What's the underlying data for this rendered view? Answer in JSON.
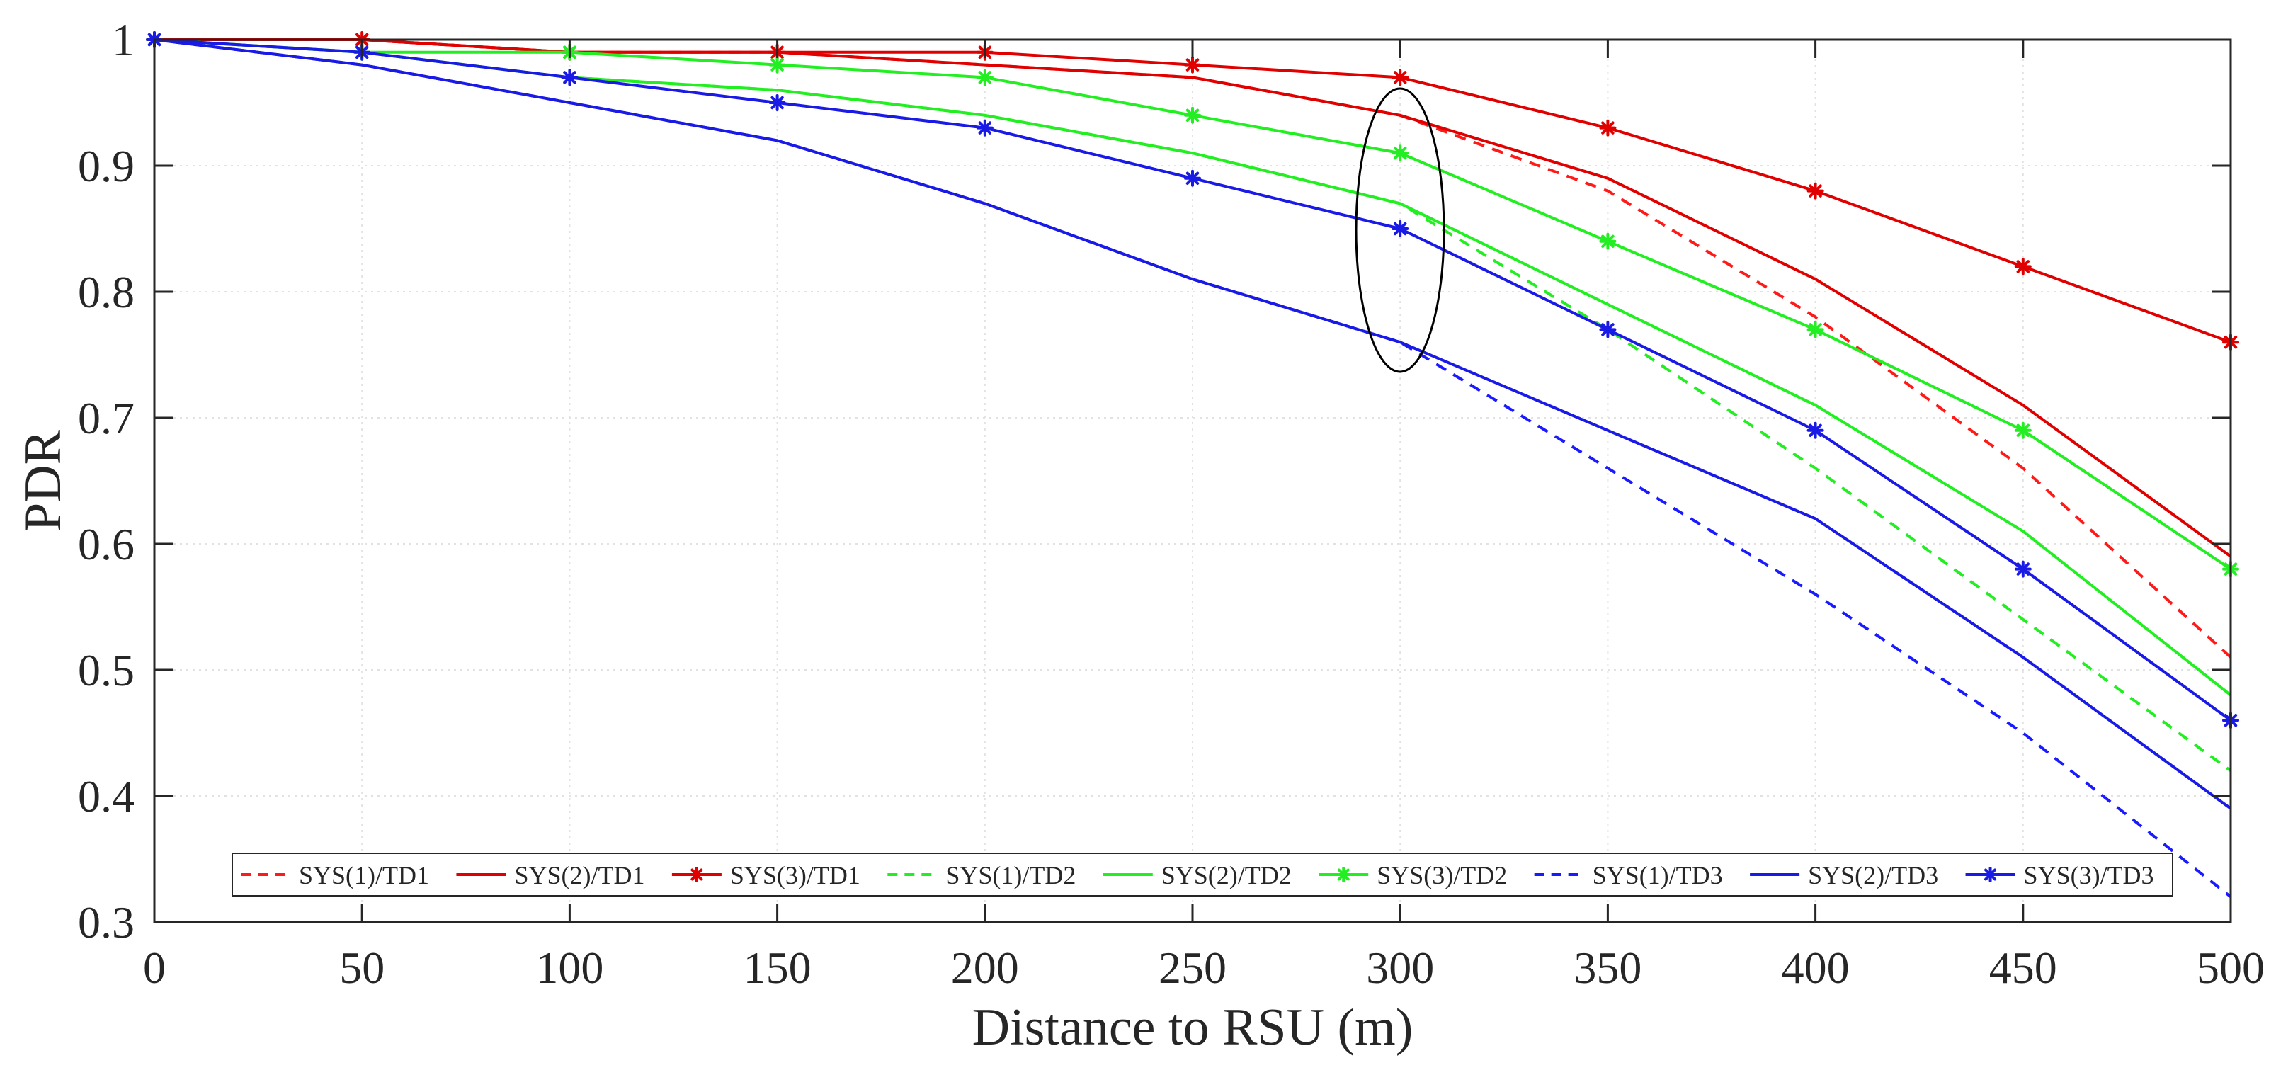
{
  "chart_data": {
    "type": "line",
    "title": "",
    "xlabel": "Distance to RSU (m)",
    "ylabel": "PDR",
    "xlim": [
      0,
      500
    ],
    "ylim": [
      0.3,
      1
    ],
    "grid": true,
    "legend_position": "bottom",
    "x": [
      0,
      50,
      100,
      150,
      200,
      250,
      300,
      350,
      400,
      450,
      500
    ],
    "x_tick_labels": [
      "0",
      "50",
      "100",
      "150",
      "200",
      "250",
      "300",
      "350",
      "400",
      "450",
      "500"
    ],
    "y_ticks": [
      0.3,
      0.4,
      0.5,
      0.6,
      0.7,
      0.8,
      0.9,
      1
    ],
    "y_tick_labels": [
      "0.3",
      "0.4",
      "0.5",
      "0.6",
      "0.7",
      "0.8",
      "0.9",
      "1"
    ],
    "series": [
      {
        "name": "SYS(1)/TD1",
        "color": "#ff1a1a",
        "line_style": "dashed",
        "marker": "none",
        "values": [
          1,
          1,
          0.99,
          0.99,
          0.98,
          0.97,
          0.94,
          0.88,
          0.78,
          0.66,
          0.51
        ]
      },
      {
        "name": "SYS(2)/TD1",
        "color": "#e00000",
        "line_style": "solid",
        "marker": "none",
        "values": [
          1,
          1,
          0.99,
          0.99,
          0.98,
          0.97,
          0.94,
          0.89,
          0.81,
          0.71,
          0.59
        ]
      },
      {
        "name": "SYS(3)/TD1",
        "color": "#e00000",
        "line_style": "solid",
        "marker": "star",
        "values": [
          1,
          1,
          0.99,
          0.99,
          0.99,
          0.98,
          0.97,
          0.93,
          0.88,
          0.82,
          0.76
        ]
      },
      {
        "name": "SYS(1)/TD2",
        "color": "#22ee22",
        "line_style": "dashed",
        "marker": "none",
        "values": [
          1,
          0.99,
          0.97,
          0.96,
          0.94,
          0.91,
          0.87,
          0.77,
          0.66,
          0.54,
          0.42
        ]
      },
      {
        "name": "SYS(2)/TD2",
        "color": "#22ee22",
        "line_style": "solid",
        "marker": "none",
        "values": [
          1,
          0.99,
          0.97,
          0.96,
          0.94,
          0.91,
          0.87,
          0.79,
          0.71,
          0.61,
          0.48
        ]
      },
      {
        "name": "SYS(3)/TD2",
        "color": "#22ee22",
        "line_style": "solid",
        "marker": "star",
        "values": [
          1,
          0.99,
          0.99,
          0.98,
          0.97,
          0.94,
          0.91,
          0.84,
          0.77,
          0.69,
          0.58
        ]
      },
      {
        "name": "SYS(1)/TD3",
        "color": "#1a1aff",
        "line_style": "dashed",
        "marker": "none",
        "values": [
          1,
          0.98,
          0.95,
          0.92,
          0.87,
          0.81,
          0.76,
          0.66,
          0.56,
          0.45,
          0.32
        ]
      },
      {
        "name": "SYS(2)/TD3",
        "color": "#1a1ae6",
        "line_style": "solid",
        "marker": "none",
        "values": [
          1,
          0.98,
          0.95,
          0.92,
          0.87,
          0.81,
          0.76,
          0.69,
          0.62,
          0.51,
          0.39
        ]
      },
      {
        "name": "SYS(3)/TD3",
        "color": "#1a1ae6",
        "line_style": "solid",
        "marker": "star",
        "values": [
          1,
          0.99,
          0.97,
          0.95,
          0.93,
          0.89,
          0.85,
          0.77,
          0.69,
          0.58,
          0.46
        ]
      }
    ],
    "annotations": [
      {
        "type": "ellipse",
        "x": 300,
        "y_range": [
          0.74,
          0.99
        ],
        "description": "highlights the SYS(2) and SYS(3) curves at 300 m"
      }
    ]
  }
}
